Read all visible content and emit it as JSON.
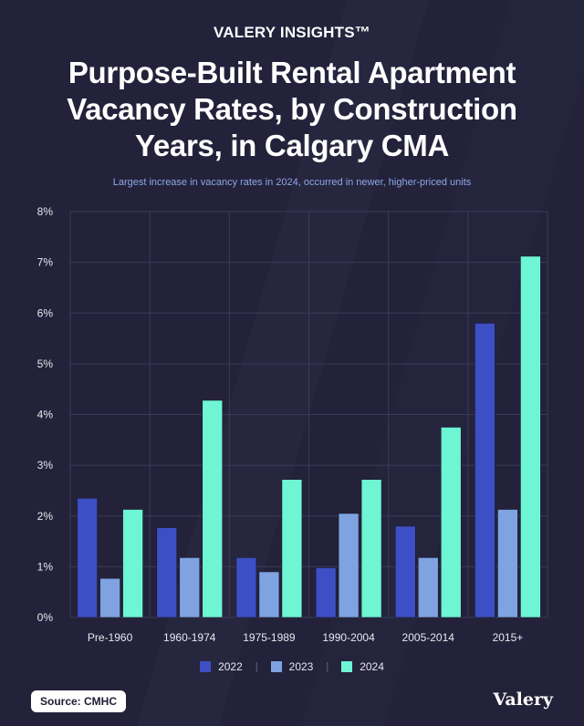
{
  "brand": "VALERY INSIGHTS™",
  "title": "Purpose-Built Rental Apartment Vacancy Rates, by Construction Years, in Calgary CMA",
  "subtitle": "Largest increase in vacancy rates in 2024, occurred in newer, higher-priced units",
  "source": "Source: CMHC",
  "logo": "Valery",
  "legend_separator": "|",
  "colors": {
    "background": "#23223a",
    "grid": "#3c3b57",
    "axis_text": "#e8e8f0"
  },
  "chart_data": {
    "type": "bar",
    "categories": [
      "Pre-1960",
      "1960-1974",
      "1975-1989",
      "1990-2004",
      "2005-2014",
      "2015+"
    ],
    "series": [
      {
        "name": "2022",
        "color": "#3d4fc4",
        "values": [
          2.35,
          1.77,
          1.18,
          0.98,
          1.8,
          5.8
        ]
      },
      {
        "name": "2023",
        "color": "#7ea3e0",
        "values": [
          0.77,
          1.18,
          0.9,
          2.05,
          1.18,
          2.13
        ]
      },
      {
        "name": "2024",
        "color": "#6ef5d4",
        "values": [
          2.13,
          4.28,
          2.72,
          2.72,
          3.75,
          7.12
        ]
      }
    ],
    "ylim": [
      0,
      8
    ],
    "yticks": [
      "0%",
      "1%",
      "2%",
      "3%",
      "4%",
      "5%",
      "6%",
      "7%",
      "8%"
    ],
    "grid": true,
    "legend_position": "bottom"
  }
}
